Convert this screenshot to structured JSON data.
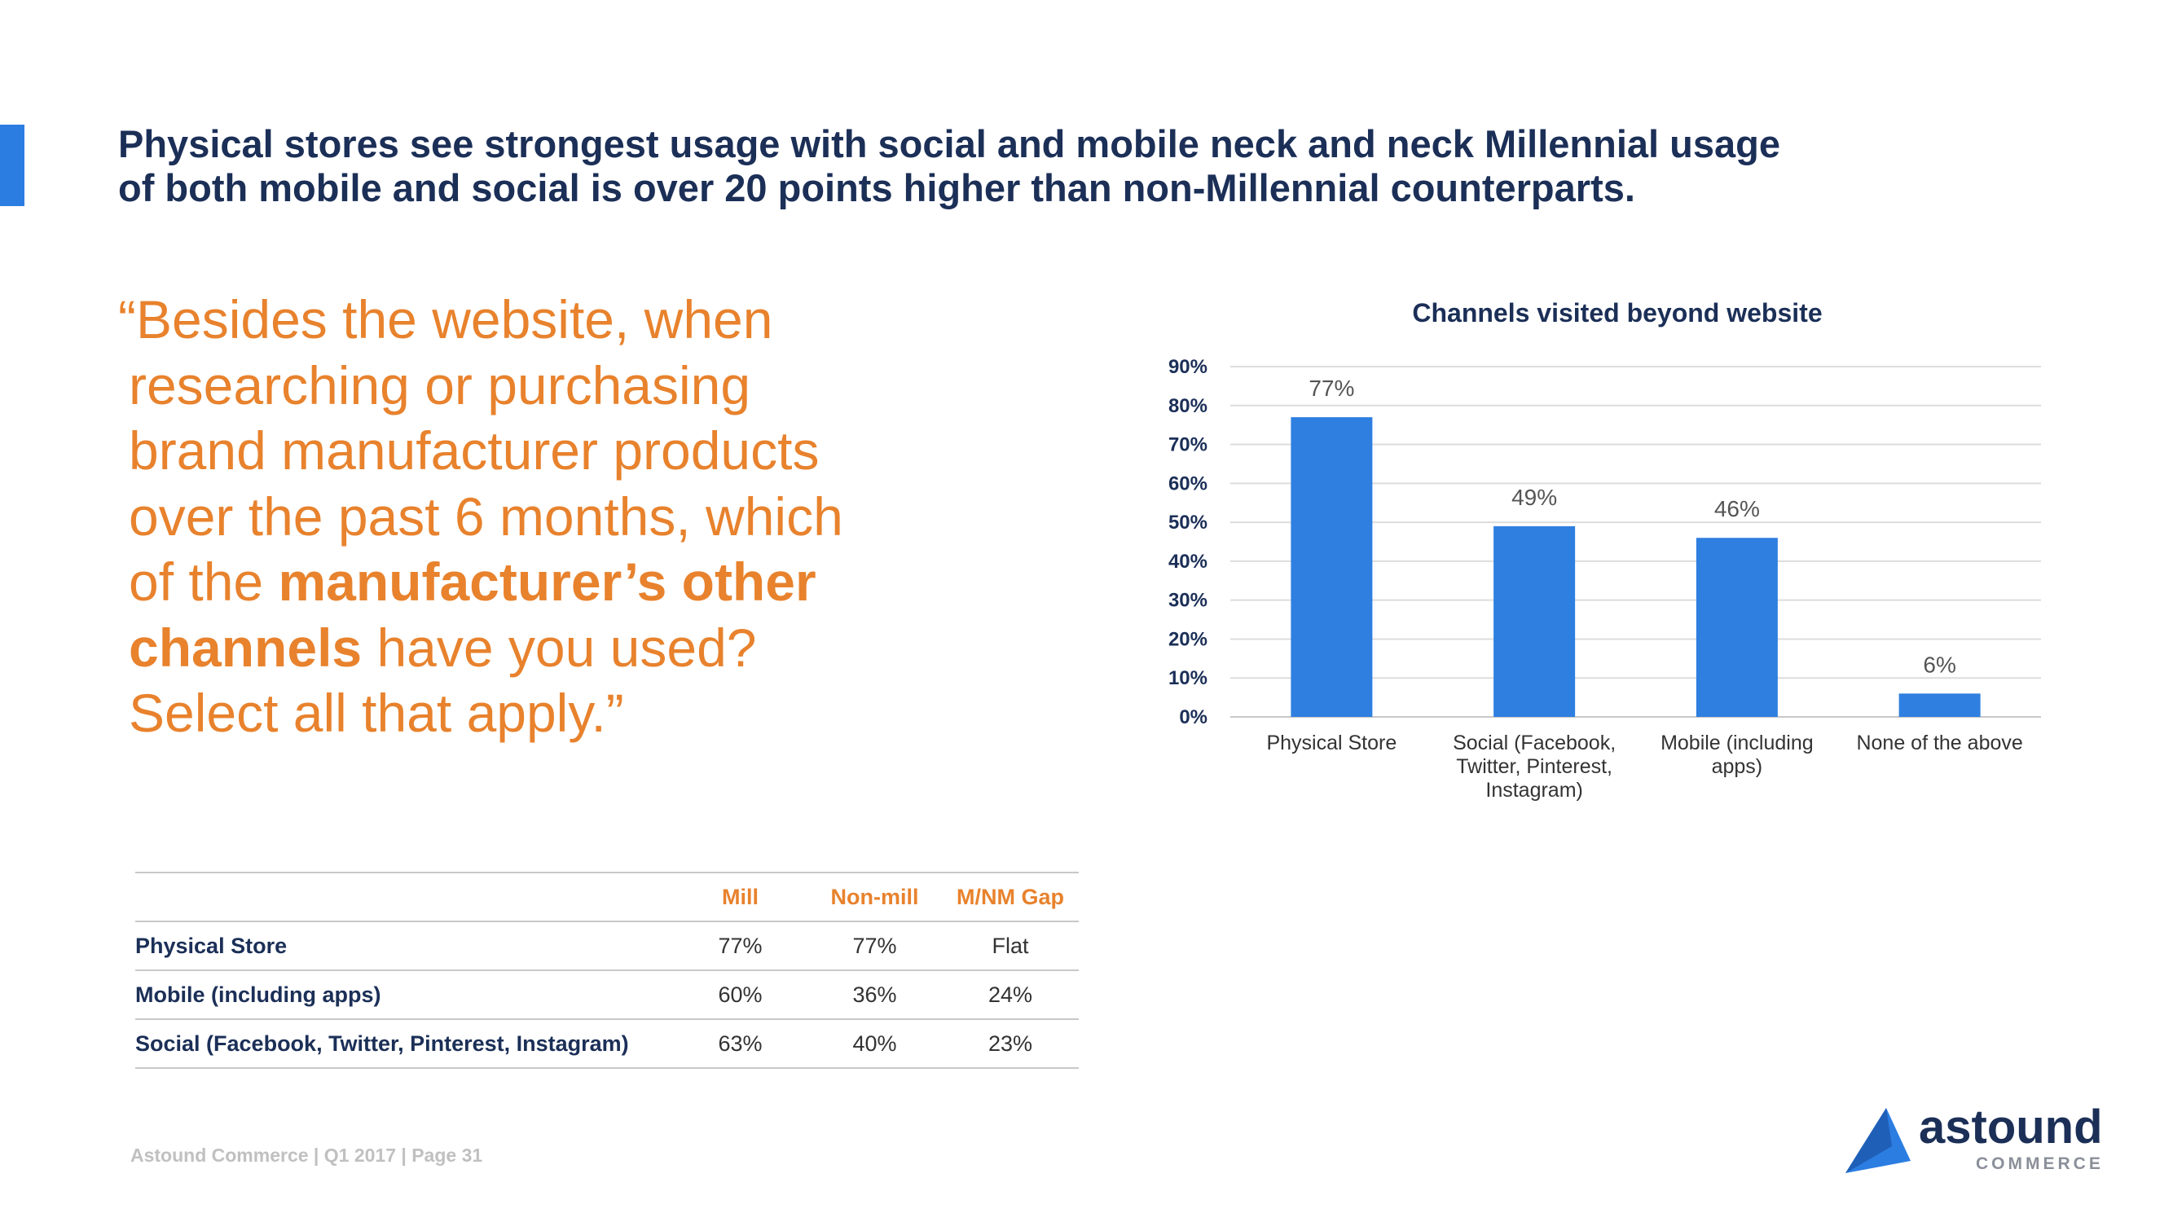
{
  "headline": {
    "line1": "Physical stores see strongest usage with social and mobile neck and neck Millennial usage",
    "line2": "of both mobile and social is over 20 points higher than non-Millennial counterparts."
  },
  "quote": {
    "l1": "“Besides the website, when",
    "l2": "researching or purchasing",
    "l3": "brand manufacturer products",
    "l4": "over the past 6 months, which",
    "l5_pre": "of the ",
    "l5_bold": "manufacturer’s other",
    "l6_bold": "channels",
    "l6_post": " have you used?",
    "l7": "Select all that apply.”"
  },
  "chart_data": {
    "type": "bar",
    "title": "Channels visited beyond website",
    "categories": [
      [
        "Physical Store"
      ],
      [
        "Social (Facebook,",
        "Twitter, Pinterest,",
        "Instagram)"
      ],
      [
        "Mobile (including",
        "apps)"
      ],
      [
        "None of the above"
      ]
    ],
    "values": [
      77,
      49,
      46,
      6
    ],
    "value_labels": [
      "77%",
      "49%",
      "46%",
      "6%"
    ],
    "y_ticks": [
      "0%",
      "10%",
      "20%",
      "30%",
      "40%",
      "50%",
      "60%",
      "70%",
      "80%",
      "90%"
    ],
    "ylim": [
      0,
      90
    ],
    "grid": true,
    "bar_color": "#2f7fe0"
  },
  "table": {
    "headers": [
      "",
      "Mill",
      "Non-mill",
      "M/NM Gap"
    ],
    "rows": [
      [
        "Physical Store",
        "77%",
        "77%",
        "Flat"
      ],
      [
        "Mobile (including apps)",
        "60%",
        "36%",
        "24%"
      ],
      [
        "Social (Facebook, Twitter, Pinterest, Instagram)",
        "63%",
        "40%",
        "23%"
      ]
    ]
  },
  "footer": "Astound Commerce | Q1 2017 | Page 31",
  "logo": {
    "word": "astound",
    "sub": "COMMERCE"
  },
  "colors": {
    "accent": "#2b7de1",
    "navy": "#1b2f57",
    "orange": "#e8822d"
  }
}
